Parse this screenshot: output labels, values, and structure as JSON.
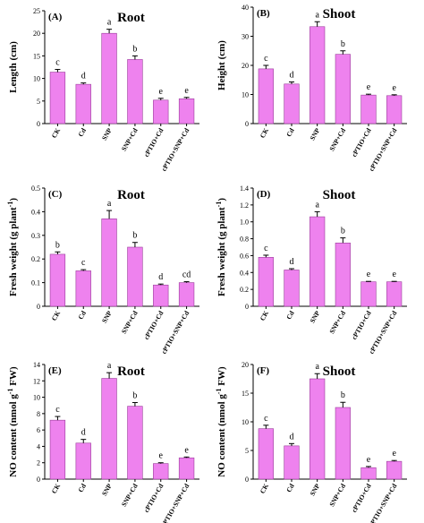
{
  "chart_data": [
    {
      "type": "bar",
      "panel": "(A)",
      "title": "Root",
      "ylabel": "Length (cm)",
      "xlabel": "",
      "ylim": [
        0,
        25
      ],
      "yticks": [
        "0",
        "5",
        "10",
        "15",
        "20",
        "25"
      ],
      "categories": [
        "CK",
        "Cd",
        "SNP",
        "SNP+Cd",
        "cPTIO+Cd",
        "cPTIO+SNP+Cd"
      ],
      "values": [
        11.4,
        8.7,
        20.0,
        14.2,
        5.2,
        5.5
      ],
      "errors": [
        0.6,
        0.3,
        0.9,
        0.8,
        0.4,
        0.3
      ],
      "significance": [
        "c",
        "d",
        "a",
        "b",
        "e",
        "e"
      ],
      "bar_color": "#ee82ee"
    },
    {
      "type": "bar",
      "panel": "(B)",
      "title": "Shoot",
      "ylabel": "Height (cm)",
      "xlabel": "",
      "ylim": [
        0,
        40
      ],
      "yticks": [
        "0",
        "10",
        "20",
        "30",
        "40"
      ],
      "categories": [
        "CK",
        "Cd",
        "SNP",
        "SNP+Cd",
        "cPTIO+Cd",
        "cPTIO+SNP+Cd"
      ],
      "values": [
        18.8,
        13.6,
        33.3,
        23.8,
        9.8,
        9.6
      ],
      "errors": [
        1.2,
        0.7,
        1.7,
        1.2,
        0.3,
        0.3
      ],
      "significance": [
        "c",
        "d",
        "a",
        "b",
        "e",
        "e"
      ],
      "bar_color": "#ee82ee"
    },
    {
      "type": "bar",
      "panel": "(C)",
      "title": "Root",
      "ylabel": "Fresh weight (g plant",
      "ylabel_sup": "-1",
      "ylabel_end": ")",
      "xlabel": "",
      "ylim": [
        0,
        0.5
      ],
      "yticks": [
        "0",
        "0.1",
        "0.2",
        "0.3",
        "0.4",
        "0.5"
      ],
      "categories": [
        "CK",
        "Cd",
        "SNP",
        "SNP+Cd",
        "cPTIO+Cd",
        "cPTIO+SNP+Cd"
      ],
      "values": [
        0.22,
        0.15,
        0.37,
        0.25,
        0.09,
        0.1
      ],
      "errors": [
        0.01,
        0.005,
        0.035,
        0.02,
        0.004,
        0.004
      ],
      "significance": [
        "b",
        "c",
        "a",
        "b",
        "d",
        "cd"
      ],
      "bar_color": "#ee82ee"
    },
    {
      "type": "bar",
      "panel": "(D)",
      "title": "Shoot",
      "ylabel": "Fresh weight (g plant",
      "ylabel_sup": "-1",
      "ylabel_end": ")",
      "xlabel": "",
      "ylim": [
        0,
        1.4
      ],
      "yticks": [
        "0",
        "0.2",
        "0.4",
        "0.6",
        "0.8",
        "1.0",
        "1.2",
        "1.4"
      ],
      "categories": [
        "CK",
        "Cd",
        "SNP",
        "SNP+Cd",
        "cPTIO+Cd",
        "cPTIO+SNP+Cd"
      ],
      "values": [
        0.58,
        0.43,
        1.06,
        0.75,
        0.29,
        0.29
      ],
      "errors": [
        0.025,
        0.015,
        0.06,
        0.06,
        0.005,
        0.005
      ],
      "significance": [
        "c",
        "d",
        "a",
        "b",
        "e",
        "e"
      ],
      "bar_color": "#ee82ee"
    },
    {
      "type": "bar",
      "panel": "(E)",
      "title": "Root",
      "ylabel": "NO content (nmol g",
      "ylabel_sup": "-1",
      "ylabel_end": " FW)",
      "xlabel": "",
      "ylim": [
        0,
        14
      ],
      "yticks": [
        "0",
        "2",
        "4",
        "6",
        "8",
        "10",
        "12",
        "14"
      ],
      "categories": [
        "CK",
        "Cd",
        "SNP",
        "SNP+Cd",
        "cPTIO+Cd",
        "cPTIO+SNP+Cd"
      ],
      "values": [
        7.2,
        4.4,
        12.3,
        8.9,
        1.9,
        2.6
      ],
      "errors": [
        0.45,
        0.45,
        0.7,
        0.45,
        0.1,
        0.1
      ],
      "significance": [
        "c",
        "d",
        "a",
        "b",
        "e",
        "e"
      ],
      "bar_color": "#ee82ee"
    },
    {
      "type": "bar",
      "panel": "(F)",
      "title": "Shoot",
      "ylabel": "NO content (nmol g",
      "ylabel_sup": "-1",
      "ylabel_end": " FW)",
      "xlabel": "",
      "ylim": [
        0,
        20
      ],
      "yticks": [
        "0",
        "5",
        "10",
        "15",
        "20"
      ],
      "categories": [
        "CK",
        "Cd",
        "SNP",
        "SNP+Cd",
        "cPTIO+Cd",
        "cPTIO+SNP+Cd"
      ],
      "values": [
        8.8,
        5.8,
        17.5,
        12.5,
        2.0,
        3.1
      ],
      "errors": [
        0.6,
        0.4,
        0.9,
        0.9,
        0.2,
        0.15
      ],
      "significance": [
        "c",
        "d",
        "a",
        "b",
        "e",
        "e"
      ],
      "bar_color": "#ee82ee"
    }
  ]
}
